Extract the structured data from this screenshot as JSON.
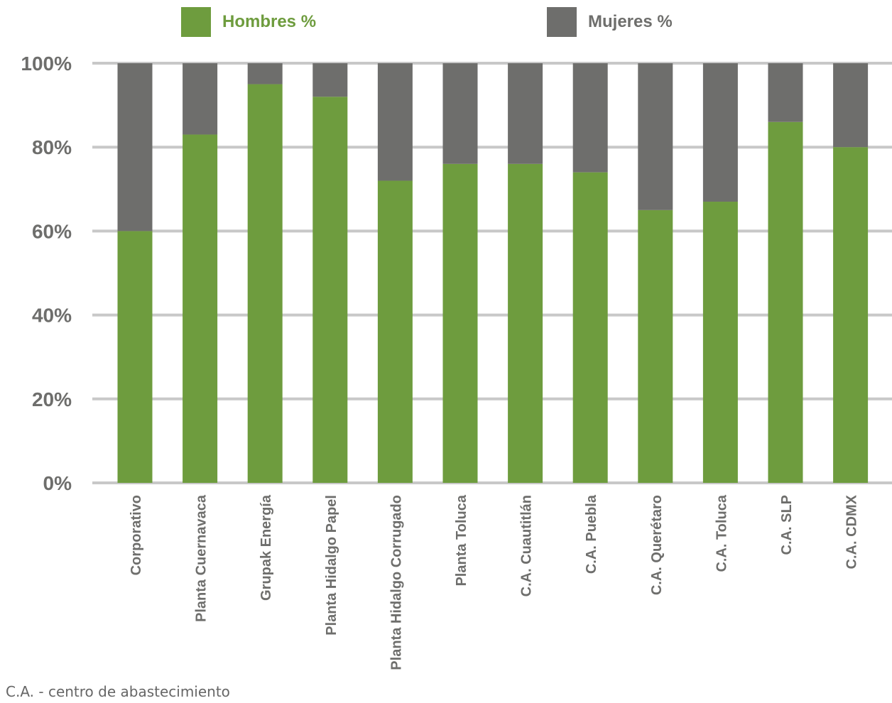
{
  "chart_data": {
    "type": "bar",
    "stacked": true,
    "categories": [
      "Corporativo",
      "Planta Cuernavaca",
      "Grupak Energía",
      "Planta Hidalgo Papel",
      "Planta Hidalgo Corrugado",
      "Planta Toluca",
      "C.A. Cuautitlán",
      "C.A. Puebla",
      "C.A. Querétaro",
      "C.A. Toluca",
      "C.A. SLP",
      "C.A. CDMX"
    ],
    "series": [
      {
        "name": "Hombres %",
        "color": "#6e9c3e",
        "values": [
          60,
          83,
          95,
          92,
          72,
          76,
          76,
          74,
          65,
          67,
          86,
          80
        ]
      },
      {
        "name": "Mujeres %",
        "color": "#6e6e6c",
        "values": [
          40,
          17,
          5,
          8,
          28,
          24,
          24,
          26,
          35,
          33,
          14,
          20
        ]
      }
    ],
    "y_ticks": [
      "0%",
      "20%",
      "40%",
      "60%",
      "80%",
      "100%"
    ],
    "ylim": [
      0,
      100
    ],
    "grid": true,
    "legend_position": "top",
    "title": "",
    "xlabel": "",
    "ylabel": ""
  },
  "footnote": "C.A. - centro de abastecimiento",
  "colors": {
    "grid": "#c8c8c8",
    "axis_text": "#6e6e6c",
    "green_text": "#6e9c3e"
  }
}
